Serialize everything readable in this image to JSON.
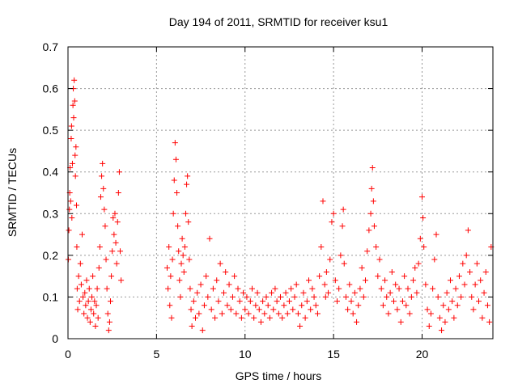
{
  "chart_data": {
    "type": "scatter",
    "title": "Day 194 of 2011, SRMTID for receiver ksu1",
    "xlabel": "GPS time / hours",
    "ylabel": "SRMTID / TECUs",
    "xlim": [
      0,
      24
    ],
    "ylim": [
      0,
      0.7
    ],
    "xticks": [
      "0",
      "5",
      "10",
      "15",
      "20"
    ],
    "yticks": [
      "0",
      "0.1",
      "0.2",
      "0.3",
      "0.4",
      "0.5",
      "0.6",
      "0.7"
    ],
    "grid": true,
    "marker": "+",
    "color": "#ff0000",
    "series": [
      {
        "name": "SRMTID",
        "points": [
          [
            0.02,
            0.19
          ],
          [
            0.05,
            0.26
          ],
          [
            0.08,
            0.31
          ],
          [
            0.1,
            0.35
          ],
          [
            0.12,
            0.41
          ],
          [
            0.15,
            0.33
          ],
          [
            0.18,
            0.48
          ],
          [
            0.2,
            0.51
          ],
          [
            0.22,
            0.29
          ],
          [
            0.25,
            0.42
          ],
          [
            0.28,
            0.56
          ],
          [
            0.3,
            0.6
          ],
          [
            0.32,
            0.53
          ],
          [
            0.35,
            0.62
          ],
          [
            0.38,
            0.57
          ],
          [
            0.4,
            0.44
          ],
          [
            0.42,
            0.39
          ],
          [
            0.45,
            0.46
          ],
          [
            0.48,
            0.32
          ],
          [
            0.5,
            0.22
          ],
          [
            0.52,
            0.12
          ],
          [
            0.55,
            0.07
          ],
          [
            0.6,
            0.15
          ],
          [
            0.65,
            0.09
          ],
          [
            0.7,
            0.18
          ],
          [
            0.75,
            0.13
          ],
          [
            0.8,
            0.25
          ],
          [
            0.85,
            0.1
          ],
          [
            0.9,
            0.06
          ],
          [
            0.95,
            0.11
          ],
          [
            1.0,
            0.08
          ],
          [
            1.05,
            0.14
          ],
          [
            1.1,
            0.05
          ],
          [
            1.15,
            0.09
          ],
          [
            1.2,
            0.12
          ],
          [
            1.25,
            0.04
          ],
          [
            1.3,
            0.07
          ],
          [
            1.35,
            0.1
          ],
          [
            1.4,
            0.15
          ],
          [
            1.45,
            0.06
          ],
          [
            1.5,
            0.09
          ],
          [
            1.55,
            0.03
          ],
          [
            1.6,
            0.08
          ],
          [
            1.65,
            0.12
          ],
          [
            1.7,
            0.05
          ],
          [
            1.75,
            0.17
          ],
          [
            1.8,
            0.22
          ],
          [
            1.85,
            0.34
          ],
          [
            1.9,
            0.39
          ],
          [
            1.95,
            0.42
          ],
          [
            2.0,
            0.36
          ],
          [
            2.05,
            0.31
          ],
          [
            2.1,
            0.27
          ],
          [
            2.15,
            0.19
          ],
          [
            2.2,
            0.12
          ],
          [
            2.25,
            0.06
          ],
          [
            2.3,
            0.02
          ],
          [
            2.35,
            0.04
          ],
          [
            2.4,
            0.09
          ],
          [
            2.45,
            0.15
          ],
          [
            2.5,
            0.21
          ],
          [
            2.55,
            0.29
          ],
          [
            2.6,
            0.25
          ],
          [
            2.65,
            0.3
          ],
          [
            2.7,
            0.23
          ],
          [
            2.75,
            0.18
          ],
          [
            2.8,
            0.28
          ],
          [
            2.85,
            0.35
          ],
          [
            2.9,
            0.4
          ],
          [
            2.95,
            0.21
          ],
          [
            3.0,
            0.14
          ],
          [
            5.6,
            0.17
          ],
          [
            5.65,
            0.12
          ],
          [
            5.7,
            0.22
          ],
          [
            5.75,
            0.08
          ],
          [
            5.8,
            0.15
          ],
          [
            5.85,
            0.05
          ],
          [
            5.9,
            0.19
          ],
          [
            5.95,
            0.3
          ],
          [
            6.0,
            0.38
          ],
          [
            6.05,
            0.47
          ],
          [
            6.1,
            0.43
          ],
          [
            6.15,
            0.35
          ],
          [
            6.2,
            0.27
          ],
          [
            6.25,
            0.21
          ],
          [
            6.3,
            0.14
          ],
          [
            6.35,
            0.1
          ],
          [
            6.4,
            0.18
          ],
          [
            6.45,
            0.24
          ],
          [
            6.5,
            0.2
          ],
          [
            6.55,
            0.16
          ],
          [
            6.6,
            0.22
          ],
          [
            6.65,
            0.3
          ],
          [
            6.7,
            0.37
          ],
          [
            6.75,
            0.39
          ],
          [
            6.8,
            0.28
          ],
          [
            6.85,
            0.19
          ],
          [
            6.9,
            0.12
          ],
          [
            6.95,
            0.07
          ],
          [
            7.0,
            0.03
          ],
          [
            7.1,
            0.09
          ],
          [
            7.2,
            0.05
          ],
          [
            7.3,
            0.11
          ],
          [
            7.4,
            0.06
          ],
          [
            7.5,
            0.13
          ],
          [
            7.6,
            0.02
          ],
          [
            7.7,
            0.08
          ],
          [
            7.8,
            0.15
          ],
          [
            7.9,
            0.1
          ],
          [
            8.0,
            0.24
          ],
          [
            8.1,
            0.07
          ],
          [
            8.2,
            0.12
          ],
          [
            8.3,
            0.05
          ],
          [
            8.4,
            0.14
          ],
          [
            8.5,
            0.09
          ],
          [
            8.6,
            0.18
          ],
          [
            8.7,
            0.06
          ],
          [
            8.8,
            0.11
          ],
          [
            8.9,
            0.16
          ],
          [
            9.0,
            0.08
          ],
          [
            9.1,
            0.13
          ],
          [
            9.2,
            0.07
          ],
          [
            9.3,
            0.1
          ],
          [
            9.4,
            0.15
          ],
          [
            9.5,
            0.06
          ],
          [
            9.6,
            0.12
          ],
          [
            9.7,
            0.09
          ],
          [
            9.8,
            0.05
          ],
          [
            9.9,
            0.11
          ],
          [
            10.0,
            0.07
          ],
          [
            10.1,
            0.1
          ],
          [
            10.2,
            0.06
          ],
          [
            10.3,
            0.09
          ],
          [
            10.4,
            0.12
          ],
          [
            10.5,
            0.05
          ],
          [
            10.6,
            0.08
          ],
          [
            10.7,
            0.11
          ],
          [
            10.8,
            0.07
          ],
          [
            10.9,
            0.04
          ],
          [
            11.0,
            0.09
          ],
          [
            11.1,
            0.06
          ],
          [
            11.2,
            0.1
          ],
          [
            11.3,
            0.08
          ],
          [
            11.4,
            0.05
          ],
          [
            11.5,
            0.11
          ],
          [
            11.6,
            0.07
          ],
          [
            11.7,
            0.12
          ],
          [
            11.8,
            0.09
          ],
          [
            11.9,
            0.06
          ],
          [
            12.0,
            0.1
          ],
          [
            12.1,
            0.05
          ],
          [
            12.2,
            0.08
          ],
          [
            12.3,
            0.11
          ],
          [
            12.4,
            0.06
          ],
          [
            12.5,
            0.09
          ],
          [
            12.6,
            0.12
          ],
          [
            12.7,
            0.07
          ],
          [
            12.8,
            0.1
          ],
          [
            12.9,
            0.13
          ],
          [
            13.0,
            0.06
          ],
          [
            13.1,
            0.03
          ],
          [
            13.2,
            0.08
          ],
          [
            13.3,
            0.11
          ],
          [
            13.4,
            0.05
          ],
          [
            13.5,
            0.09
          ],
          [
            13.6,
            0.14
          ],
          [
            13.7,
            0.07
          ],
          [
            13.8,
            0.12
          ],
          [
            13.9,
            0.1
          ],
          [
            14.0,
            0.08
          ],
          [
            14.1,
            0.06
          ],
          [
            14.2,
            0.15
          ],
          [
            14.3,
            0.22
          ],
          [
            14.4,
            0.33
          ],
          [
            14.5,
            0.13
          ],
          [
            14.55,
            0.1
          ],
          [
            14.6,
            0.16
          ],
          [
            14.7,
            0.11
          ],
          [
            14.8,
            0.19
          ],
          [
            14.9,
            0.28
          ],
          [
            15.0,
            0.3
          ],
          [
            15.1,
            0.14
          ],
          [
            15.2,
            0.09
          ],
          [
            15.3,
            0.12
          ],
          [
            15.4,
            0.2
          ],
          [
            15.5,
            0.27
          ],
          [
            15.55,
            0.31
          ],
          [
            15.6,
            0.18
          ],
          [
            15.7,
            0.1
          ],
          [
            15.8,
            0.07
          ],
          [
            15.9,
            0.13
          ],
          [
            16.0,
            0.09
          ],
          [
            16.1,
            0.06
          ],
          [
            16.2,
            0.11
          ],
          [
            16.3,
            0.04
          ],
          [
            16.4,
            0.08
          ],
          [
            16.5,
            0.12
          ],
          [
            16.6,
            0.17
          ],
          [
            16.7,
            0.1
          ],
          [
            16.8,
            0.14
          ],
          [
            16.9,
            0.21
          ],
          [
            17.0,
            0.26
          ],
          [
            17.1,
            0.3
          ],
          [
            17.15,
            0.36
          ],
          [
            17.2,
            0.41
          ],
          [
            17.25,
            0.33
          ],
          [
            17.3,
            0.27
          ],
          [
            17.4,
            0.22
          ],
          [
            17.5,
            0.15
          ],
          [
            17.6,
            0.19
          ],
          [
            17.7,
            0.12
          ],
          [
            17.8,
            0.08
          ],
          [
            17.9,
            0.14
          ],
          [
            18.0,
            0.1
          ],
          [
            18.1,
            0.06
          ],
          [
            18.2,
            0.11
          ],
          [
            18.3,
            0.16
          ],
          [
            18.4,
            0.09
          ],
          [
            18.5,
            0.13
          ],
          [
            18.6,
            0.07
          ],
          [
            18.7,
            0.12
          ],
          [
            18.8,
            0.04
          ],
          [
            18.9,
            0.09
          ],
          [
            19.0,
            0.15
          ],
          [
            19.1,
            0.08
          ],
          [
            19.2,
            0.12
          ],
          [
            19.3,
            0.06
          ],
          [
            19.4,
            0.1
          ],
          [
            19.5,
            0.14
          ],
          [
            19.6,
            0.17
          ],
          [
            19.7,
            0.11
          ],
          [
            19.8,
            0.18
          ],
          [
            19.9,
            0.24
          ],
          [
            20.0,
            0.34
          ],
          [
            20.05,
            0.29
          ],
          [
            20.1,
            0.22
          ],
          [
            20.2,
            0.13
          ],
          [
            20.3,
            0.07
          ],
          [
            20.4,
            0.03
          ],
          [
            20.5,
            0.06
          ],
          [
            20.6,
            0.12
          ],
          [
            20.7,
            0.19
          ],
          [
            20.8,
            0.25
          ],
          [
            20.9,
            0.1
          ],
          [
            21.0,
            0.05
          ],
          [
            21.1,
            0.02
          ],
          [
            21.2,
            0.08
          ],
          [
            21.3,
            0.04
          ],
          [
            21.4,
            0.11
          ],
          [
            21.5,
            0.07
          ],
          [
            21.6,
            0.14
          ],
          [
            21.7,
            0.09
          ],
          [
            21.8,
            0.05
          ],
          [
            21.9,
            0.12
          ],
          [
            22.0,
            0.08
          ],
          [
            22.1,
            0.15
          ],
          [
            22.2,
            0.1
          ],
          [
            22.3,
            0.18
          ],
          [
            22.4,
            0.13
          ],
          [
            22.5,
            0.2
          ],
          [
            22.6,
            0.26
          ],
          [
            22.7,
            0.16
          ],
          [
            22.8,
            0.1
          ],
          [
            22.9,
            0.07
          ],
          [
            23.0,
            0.13
          ],
          [
            23.1,
            0.18
          ],
          [
            23.2,
            0.09
          ],
          [
            23.3,
            0.14
          ],
          [
            23.4,
            0.05
          ],
          [
            23.5,
            0.11
          ],
          [
            23.6,
            0.16
          ],
          [
            23.7,
            0.08
          ],
          [
            23.8,
            0.04
          ],
          [
            23.9,
            0.22
          ]
        ]
      }
    ]
  }
}
